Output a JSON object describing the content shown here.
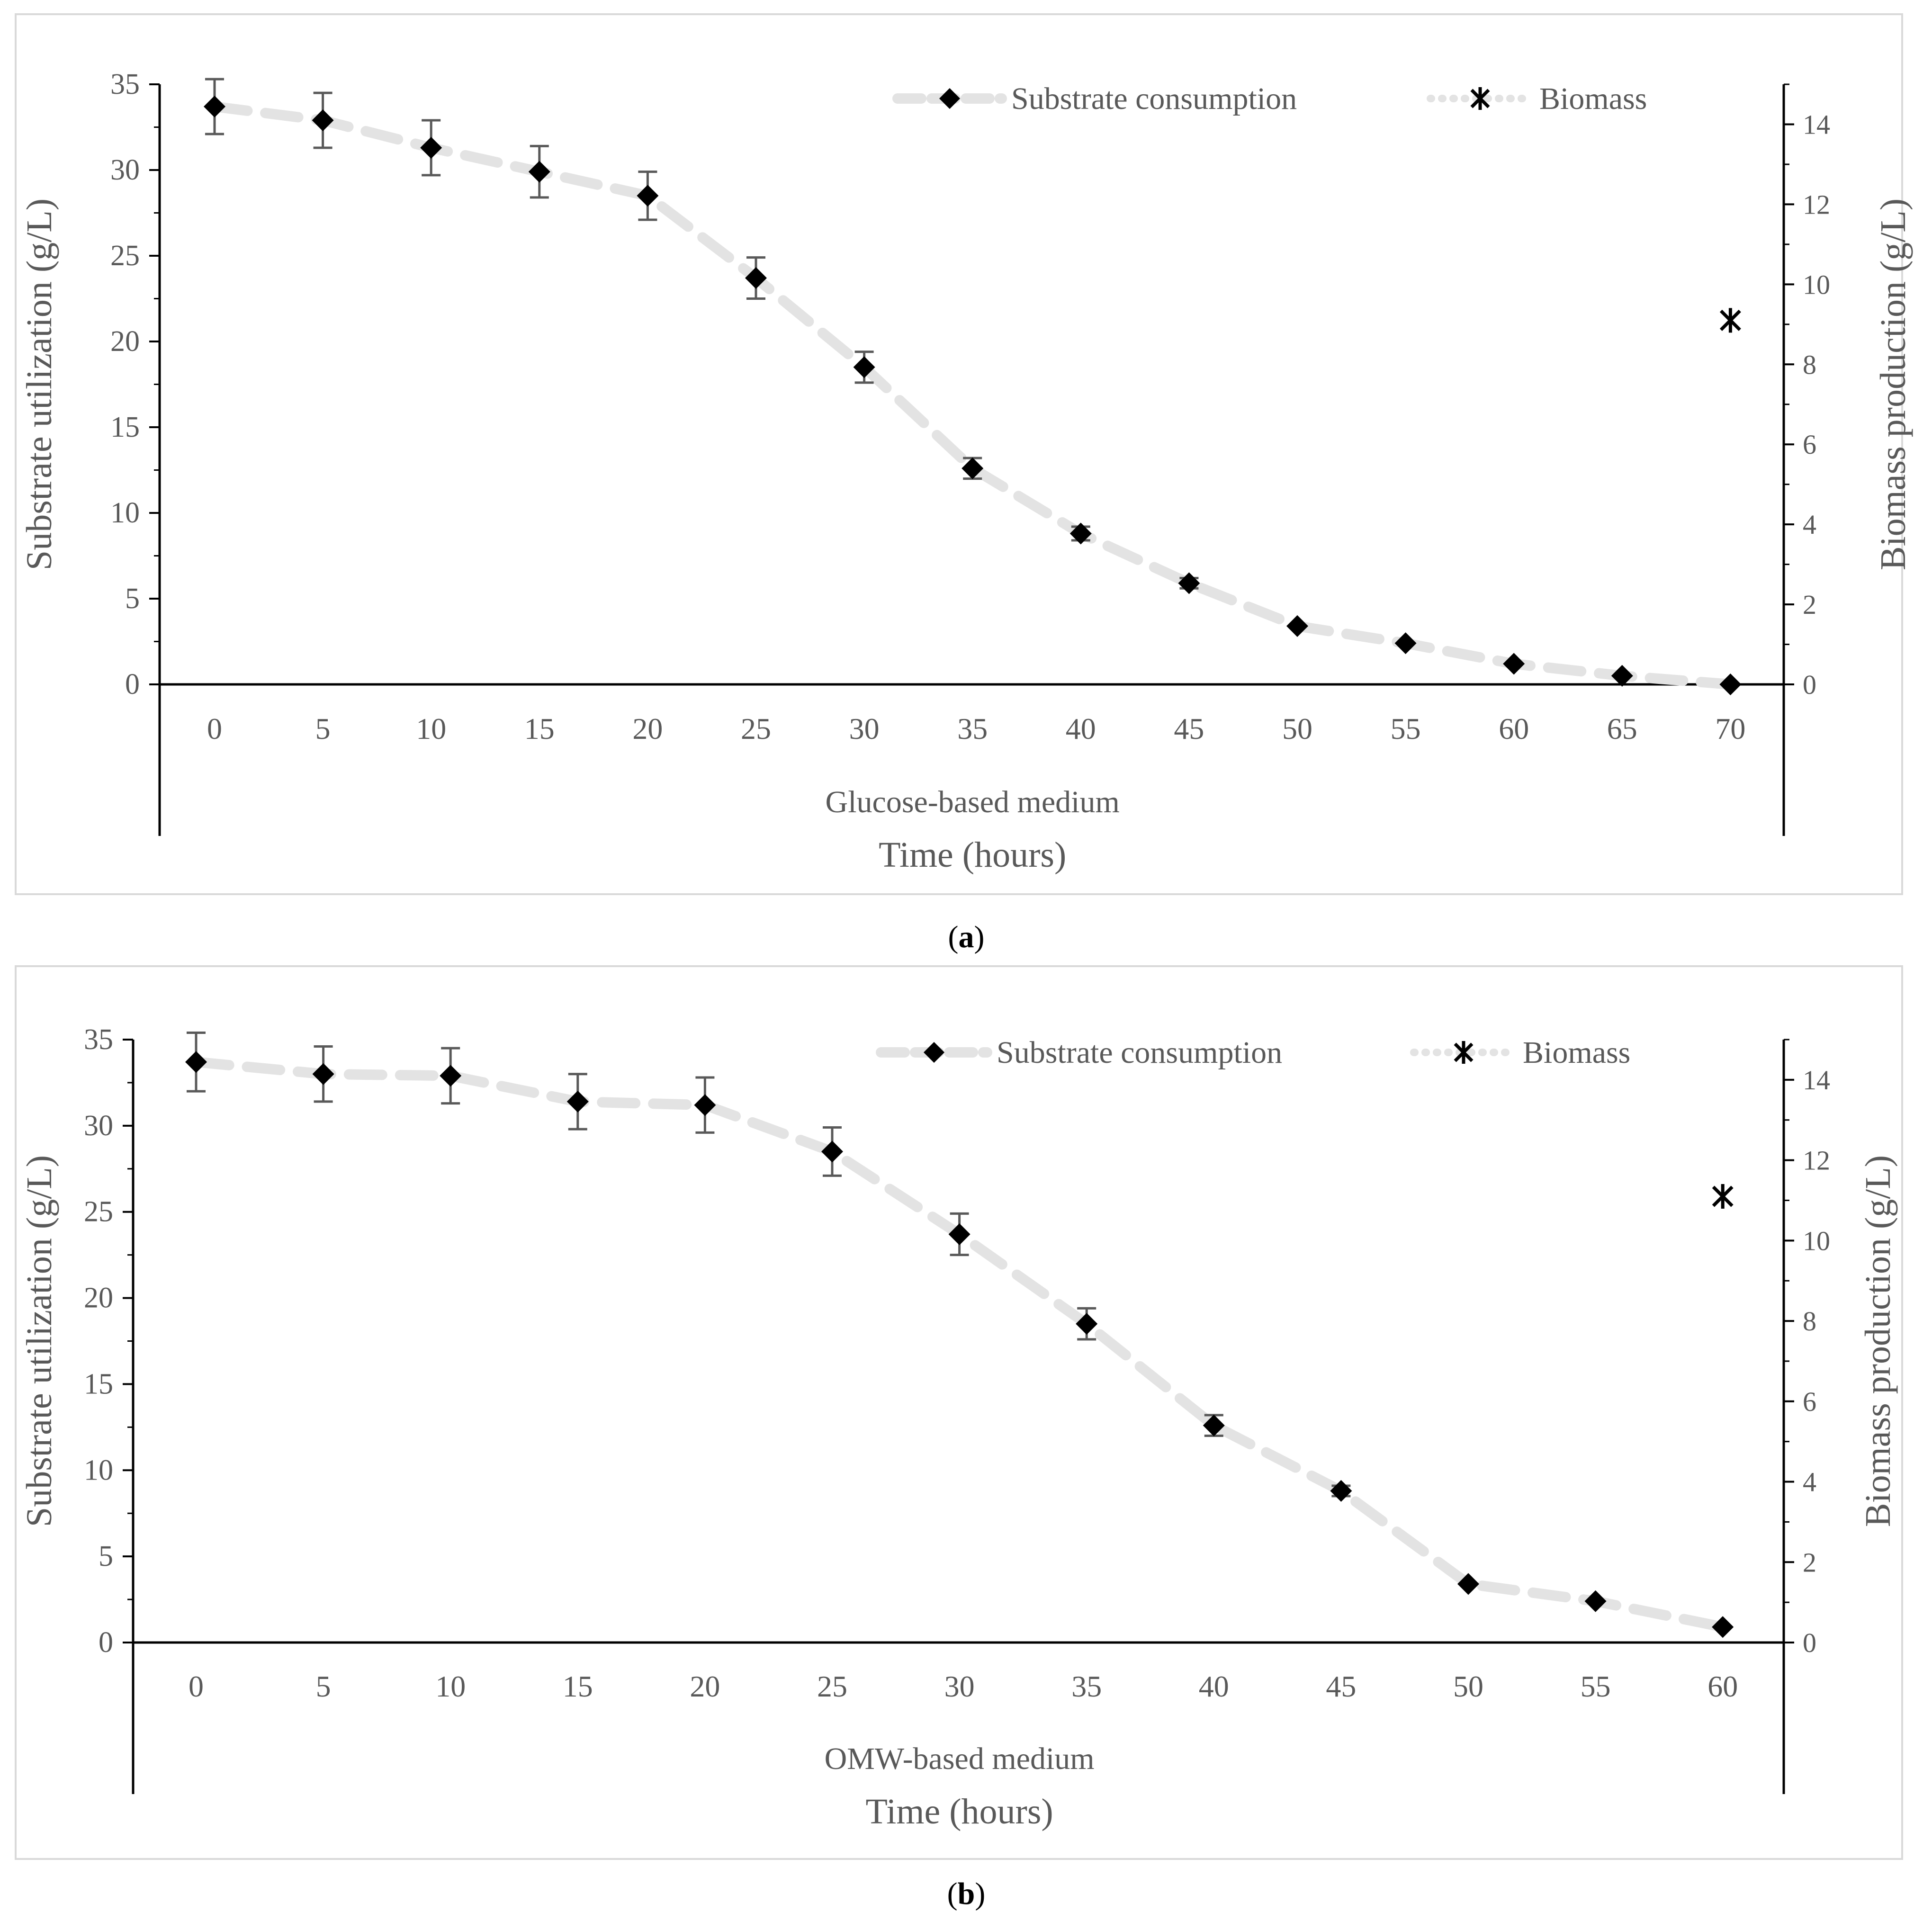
{
  "figure": {
    "panel_a_caption": "a",
    "panel_b_caption": "b"
  },
  "colors": {
    "line": "#e3e3e3",
    "marker": "#000000",
    "error_bar": "#595959",
    "axis": "#000000",
    "tick_label": "#595959",
    "frame": "#d9d9d9"
  },
  "chart_data": [
    {
      "type": "line",
      "panel": "a",
      "category_label": "Glucose-based medium",
      "xlabel": "Time (hours)",
      "ylabel": "Substrate utilization (g/L)",
      "ylabel_right": "Biomass production (g/L)",
      "categories": [
        "0",
        "5",
        "10",
        "15",
        "20",
        "25",
        "30",
        "35",
        "40",
        "45",
        "50",
        "55",
        "60",
        "65",
        "70"
      ],
      "ylim": [
        0,
        35
      ],
      "yticks": [
        "0",
        "5",
        "10",
        "15",
        "20",
        "25",
        "30",
        "35"
      ],
      "ylim_right": [
        0,
        15
      ],
      "yticks_right": [
        "0",
        "2",
        "4",
        "6",
        "8",
        "10",
        "12",
        "14"
      ],
      "legend_position": "top-right",
      "series": [
        {
          "name": "Substrate consumption",
          "axis": "left",
          "marker": "diamond",
          "line_style": "dashed",
          "values": [
            33.7,
            32.9,
            31.3,
            29.9,
            28.5,
            23.7,
            18.5,
            12.6,
            8.8,
            5.9,
            3.4,
            2.4,
            1.2,
            0.5,
            0.0
          ],
          "errors": [
            1.6,
            1.6,
            1.6,
            1.5,
            1.4,
            1.2,
            0.9,
            0.6,
            0.4,
            0.3,
            0.2,
            0.15,
            0.1,
            0.05,
            0.05
          ]
        },
        {
          "name": "Biomass",
          "axis": "right",
          "marker": "asterisk",
          "line_style": "dotted",
          "points": [
            {
              "category": "70",
              "value": 9.1
            }
          ]
        }
      ]
    },
    {
      "type": "line",
      "panel": "b",
      "category_label": "OMW-based medium",
      "xlabel": "Time (hours)",
      "ylabel": "Substrate utilization (g/L)",
      "ylabel_right": "Biomass production (g/L)",
      "categories": [
        "0",
        "5",
        "10",
        "15",
        "20",
        "25",
        "30",
        "35",
        "40",
        "45",
        "50",
        "55",
        "60"
      ],
      "ylim": [
        0,
        35
      ],
      "yticks": [
        "0",
        "5",
        "10",
        "15",
        "20",
        "25",
        "30",
        "35"
      ],
      "ylim_right": [
        0,
        15
      ],
      "yticks_right": [
        "0",
        "2",
        "4",
        "6",
        "8",
        "10",
        "12",
        "14"
      ],
      "legend_position": "top-right",
      "series": [
        {
          "name": "Substrate consumption",
          "axis": "left",
          "marker": "diamond",
          "line_style": "dashed",
          "values": [
            33.7,
            33.0,
            32.9,
            31.4,
            31.2,
            28.5,
            23.7,
            18.5,
            12.6,
            8.8,
            3.4,
            2.4,
            0.9
          ],
          "errors": [
            1.7,
            1.6,
            1.6,
            1.6,
            1.6,
            1.4,
            1.2,
            0.9,
            0.6,
            0.3,
            0.2,
            0.15,
            0.1
          ]
        },
        {
          "name": "Biomass",
          "axis": "right",
          "marker": "asterisk",
          "line_style": "dotted",
          "points": [
            {
              "category": "60",
              "value": 11.1
            }
          ]
        }
      ]
    }
  ]
}
